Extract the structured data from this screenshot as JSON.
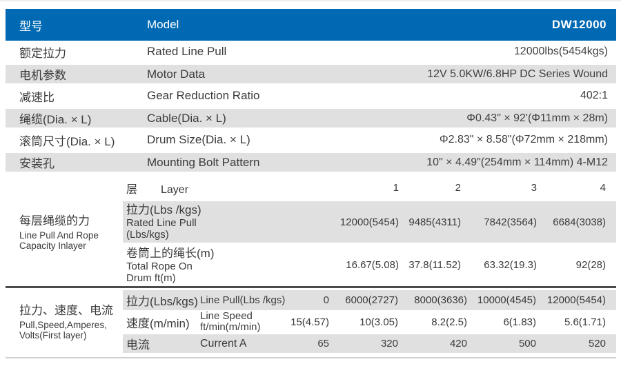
{
  "header": {
    "cn": "型号",
    "en": "Model",
    "value": "DW12000"
  },
  "specs": [
    {
      "cn": "额定拉力",
      "en": "Rated Line Pull",
      "value": "12000lbs(5454kgs)"
    },
    {
      "cn": "电机参数",
      "en": "Motor Data",
      "value": "12V 5.0KW/6.8HP DC Series Wound"
    },
    {
      "cn": "减速比",
      "en": "Gear Reduction Ratio",
      "value": "402:1"
    },
    {
      "cn": "绳缆(Dia. × L)",
      "en": "Cable(Dia. × L)",
      "value": "Φ0.43\" × 92'(Φ11mm × 28m)"
    },
    {
      "cn": "滚筒尺寸(Dia. × L)",
      "en": "Drum Size(Dia. × L)",
      "value": "Φ2.83\" × 8.58\"(Φ72mm × 218mm)"
    },
    {
      "cn": "安装孔",
      "en": "Mounting Bolt Pattern",
      "value": "10\" × 4.49\"(254mm × 114mm) 4-M12"
    }
  ],
  "layer_section": {
    "side_cn": "每层绳缆的力",
    "side_en1": "Line Pull And Rope",
    "side_en2": "Capacity Inlayer",
    "layer_cn": "层",
    "layer_en": "Layer",
    "layer_numbers": [
      "1",
      "2",
      "3",
      "4"
    ],
    "pull_label_cn": "拉力(Lbs /kgs)",
    "pull_label_en1": "Rated Line Pull",
    "pull_label_en2": "(Lbs/kgs)",
    "pull_values": [
      "12000(5454)",
      "9485(4311)",
      "7842(3564)",
      "6684(3038)"
    ],
    "rope_label_cn": "卷筒上的绳长(m)",
    "rope_label_en1": "Total Rope On",
    "rope_label_en2": "Drum ft(m)",
    "rope_values": [
      "16.67(5.08)",
      "37.8(11.52)",
      "63.32(19.3)",
      "92(28)"
    ]
  },
  "performance_section": {
    "side_cn": "拉力、速度、电流",
    "side_en1": "Pull,Speed,Amperes,",
    "side_en2": "Volts(First layer)",
    "pull_cn": "拉力(Lbs/kgs)",
    "pull_en": "Line Pull(Lbs /kgs)",
    "pull_values": [
      "0",
      "6000(2727)",
      "8000(3636)",
      "10000(4545)",
      "12000(5454)"
    ],
    "speed_cn": "速度(m/min)",
    "speed_en1": "Line Speed",
    "speed_en2": "ft/min(m/min)",
    "speed_values": [
      "15(4.57)",
      "10(3.05)",
      "8.2(2.5)",
      "6(1.83)",
      "5.6(1.71)"
    ],
    "current_cn": "电流",
    "current_en": "Current  A",
    "current_values": [
      "65",
      "320",
      "420",
      "500",
      "520"
    ]
  },
  "colors": {
    "accent_blue": "#0069b4",
    "row_gray": "#e0e0e0",
    "text": "#3a3a3a",
    "divider_dark": "#4b4b4b",
    "divider_light": "#cfcfcf"
  }
}
